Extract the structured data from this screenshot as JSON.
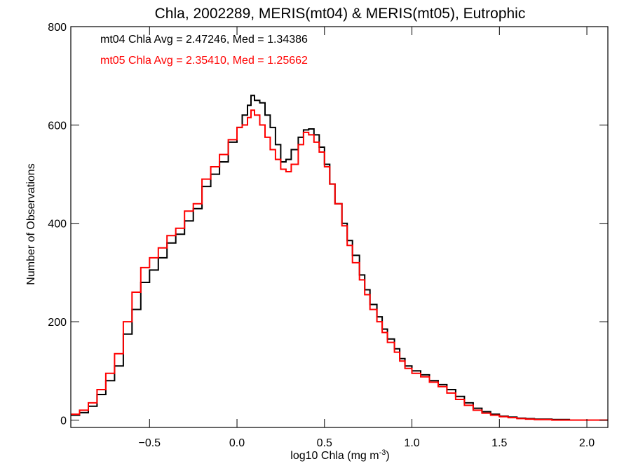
{
  "chart_data": {
    "type": "line",
    "title": "Chla, 2002289, MERIS(mt04) & MERIS(mt05), Eutrophic",
    "xlabel": "log10 Chla (mg m",
    "xlabel_sup": "-3",
    "xlabel_close": ")",
    "ylabel": "Number of Observations",
    "xlim": [
      -0.95,
      2.12
    ],
    "ylim": [
      -15,
      800
    ],
    "xticks": [
      -0.5,
      0.0,
      0.5,
      1.0,
      1.5,
      2.0
    ],
    "xtick_labels": [
      "−0.5",
      "0.0",
      "0.5",
      "1.0",
      "1.5",
      "2.0"
    ],
    "yticks": [
      0,
      200,
      400,
      600,
      800
    ],
    "ytick_labels": [
      "0",
      "200",
      "400",
      "600",
      "800"
    ],
    "grid": false,
    "legend_position": "top-left",
    "series": [
      {
        "name": "mt04 Chla Avg = 2.47246, Med = 1.34386",
        "color": "#000000",
        "points": [
          [
            -0.95,
            10
          ],
          [
            -0.9,
            15
          ],
          [
            -0.85,
            28
          ],
          [
            -0.8,
            52
          ],
          [
            -0.75,
            80
          ],
          [
            -0.7,
            110
          ],
          [
            -0.65,
            175
          ],
          [
            -0.6,
            225
          ],
          [
            -0.55,
            280
          ],
          [
            -0.5,
            305
          ],
          [
            -0.45,
            330
          ],
          [
            -0.4,
            360
          ],
          [
            -0.35,
            378
          ],
          [
            -0.3,
            405
          ],
          [
            -0.25,
            430
          ],
          [
            -0.2,
            475
          ],
          [
            -0.15,
            500
          ],
          [
            -0.1,
            525
          ],
          [
            -0.05,
            565
          ],
          [
            0.0,
            595
          ],
          [
            0.03,
            620
          ],
          [
            0.06,
            640
          ],
          [
            0.08,
            660
          ],
          [
            0.1,
            650
          ],
          [
            0.13,
            645
          ],
          [
            0.16,
            620
          ],
          [
            0.19,
            595
          ],
          [
            0.22,
            560
          ],
          [
            0.25,
            525
          ],
          [
            0.28,
            530
          ],
          [
            0.31,
            550
          ],
          [
            0.35,
            575
          ],
          [
            0.38,
            590
          ],
          [
            0.41,
            592
          ],
          [
            0.44,
            580
          ],
          [
            0.47,
            555
          ],
          [
            0.5,
            520
          ],
          [
            0.53,
            480
          ],
          [
            0.56,
            440
          ],
          [
            0.6,
            400
          ],
          [
            0.63,
            365
          ],
          [
            0.66,
            335
          ],
          [
            0.7,
            295
          ],
          [
            0.73,
            265
          ],
          [
            0.76,
            235
          ],
          [
            0.8,
            210
          ],
          [
            0.83,
            185
          ],
          [
            0.86,
            165
          ],
          [
            0.9,
            145
          ],
          [
            0.93,
            125
          ],
          [
            0.96,
            110
          ],
          [
            1.0,
            100
          ],
          [
            1.05,
            92
          ],
          [
            1.1,
            80
          ],
          [
            1.15,
            72
          ],
          [
            1.2,
            62
          ],
          [
            1.25,
            48
          ],
          [
            1.3,
            35
          ],
          [
            1.35,
            24
          ],
          [
            1.4,
            17
          ],
          [
            1.45,
            12
          ],
          [
            1.5,
            8
          ],
          [
            1.55,
            6
          ],
          [
            1.6,
            4
          ],
          [
            1.65,
            3
          ],
          [
            1.7,
            2
          ],
          [
            1.8,
            1
          ],
          [
            1.9,
            0
          ],
          [
            2.0,
            0
          ],
          [
            2.12,
            0
          ]
        ]
      },
      {
        "name": "mt05 Chla Avg = 2.35410, Med = 1.25662",
        "color": "#ff0000",
        "points": [
          [
            -0.95,
            12
          ],
          [
            -0.9,
            20
          ],
          [
            -0.85,
            35
          ],
          [
            -0.8,
            62
          ],
          [
            -0.75,
            95
          ],
          [
            -0.7,
            135
          ],
          [
            -0.65,
            200
          ],
          [
            -0.6,
            260
          ],
          [
            -0.55,
            310
          ],
          [
            -0.5,
            330
          ],
          [
            -0.45,
            350
          ],
          [
            -0.4,
            375
          ],
          [
            -0.35,
            390
          ],
          [
            -0.3,
            425
          ],
          [
            -0.25,
            440
          ],
          [
            -0.2,
            490
          ],
          [
            -0.15,
            515
          ],
          [
            -0.1,
            540
          ],
          [
            -0.05,
            570
          ],
          [
            0.0,
            595
          ],
          [
            0.03,
            600
          ],
          [
            0.06,
            615
          ],
          [
            0.08,
            630
          ],
          [
            0.1,
            620
          ],
          [
            0.13,
            600
          ],
          [
            0.16,
            575
          ],
          [
            0.19,
            550
          ],
          [
            0.22,
            530
          ],
          [
            0.25,
            510
          ],
          [
            0.28,
            505
          ],
          [
            0.31,
            520
          ],
          [
            0.35,
            560
          ],
          [
            0.38,
            585
          ],
          [
            0.41,
            580
          ],
          [
            0.44,
            565
          ],
          [
            0.47,
            545
          ],
          [
            0.5,
            515
          ],
          [
            0.53,
            480
          ],
          [
            0.56,
            440
          ],
          [
            0.6,
            395
          ],
          [
            0.63,
            355
          ],
          [
            0.66,
            320
          ],
          [
            0.7,
            285
          ],
          [
            0.73,
            255
          ],
          [
            0.76,
            225
          ],
          [
            0.8,
            200
          ],
          [
            0.83,
            178
          ],
          [
            0.86,
            158
          ],
          [
            0.9,
            138
          ],
          [
            0.93,
            120
          ],
          [
            0.96,
            105
          ],
          [
            1.0,
            95
          ],
          [
            1.05,
            88
          ],
          [
            1.1,
            77
          ],
          [
            1.15,
            68
          ],
          [
            1.2,
            55
          ],
          [
            1.25,
            42
          ],
          [
            1.3,
            30
          ],
          [
            1.35,
            20
          ],
          [
            1.4,
            14
          ],
          [
            1.45,
            10
          ],
          [
            1.5,
            7
          ],
          [
            1.55,
            5
          ],
          [
            1.6,
            3
          ],
          [
            1.65,
            2
          ],
          [
            1.7,
            1
          ],
          [
            1.8,
            0
          ],
          [
            1.9,
            0
          ],
          [
            2.0,
            0
          ],
          [
            2.12,
            0
          ]
        ]
      }
    ]
  }
}
